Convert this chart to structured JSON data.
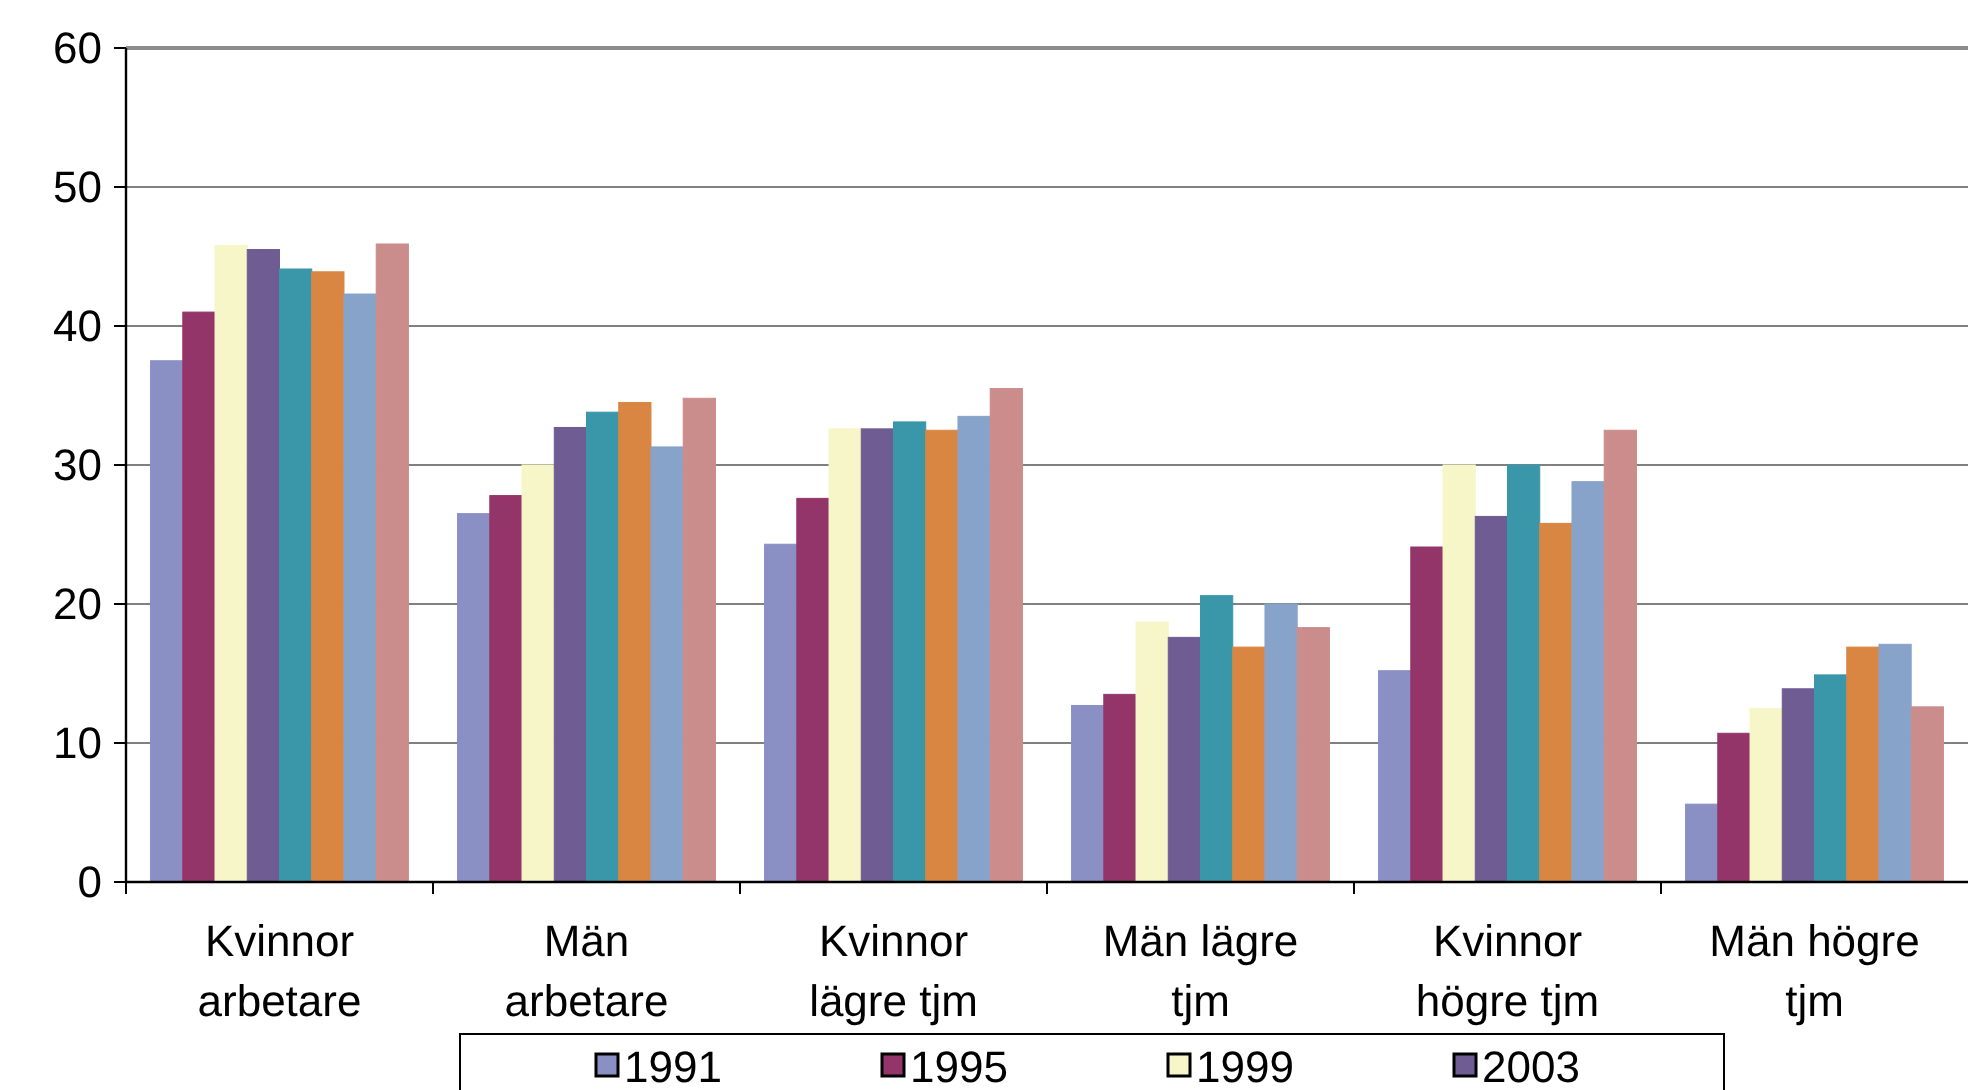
{
  "chart_data": {
    "type": "bar",
    "categories": [
      "Kvinnor arbetare",
      "Män arbetare",
      "Kvinnor lägre tjm",
      "Män lägre tjm",
      "Kvinnor högre tjm",
      "Män högre tjm"
    ],
    "series": [
      {
        "name": "1991",
        "color": "#8a8fc4",
        "values": [
          37.5,
          26.5,
          24.3,
          12.7,
          15.2,
          5.6
        ]
      },
      {
        "name": "1995",
        "color": "#94356a",
        "values": [
          41,
          27.8,
          27.6,
          13.5,
          24.1,
          10.7
        ]
      },
      {
        "name": "1999",
        "color": "#f7f6c8",
        "values": [
          45.8,
          30,
          32.6,
          18.7,
          30,
          12.5
        ]
      },
      {
        "name": "2003",
        "color": "#6e5c92",
        "values": [
          45.5,
          32.7,
          32.6,
          17.6,
          26.3,
          13.9
        ]
      },
      {
        "color": "#3a97a9",
        "values": [
          44.1,
          33.8,
          33.1,
          20.6,
          30,
          14.9
        ]
      },
      {
        "color": "#d98643",
        "values": [
          43.9,
          34.5,
          32.5,
          16.9,
          25.8,
          16.9
        ]
      },
      {
        "color": "#87a3c9",
        "values": [
          42.3,
          31.3,
          33.5,
          20,
          28.8,
          17.1
        ]
      },
      {
        "color": "#cb8c8c",
        "values": [
          45.9,
          34.8,
          35.5,
          18.3,
          32.5,
          12.6
        ]
      }
    ],
    "ylim": [
      0,
      60
    ],
    "yticks": [
      0,
      10,
      20,
      30,
      40,
      50,
      60
    ],
    "grid": "y",
    "legend": "bottom"
  }
}
